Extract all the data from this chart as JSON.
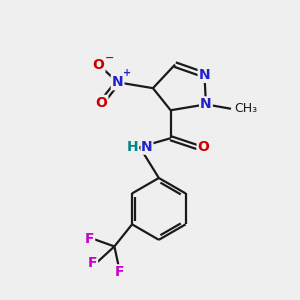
{
  "background_color": "#efefef",
  "bond_color": "#1a1a1a",
  "N_color": "#2222cc",
  "O_color": "#cc0000",
  "F_color": "#cc00cc",
  "H_color": "#008888",
  "figsize": [
    3.0,
    3.0
  ],
  "dpi": 100,
  "xlim": [
    0,
    10
  ],
  "ylim": [
    0,
    10
  ],
  "lw": 1.6,
  "fs": 10,
  "fs_small": 9
}
